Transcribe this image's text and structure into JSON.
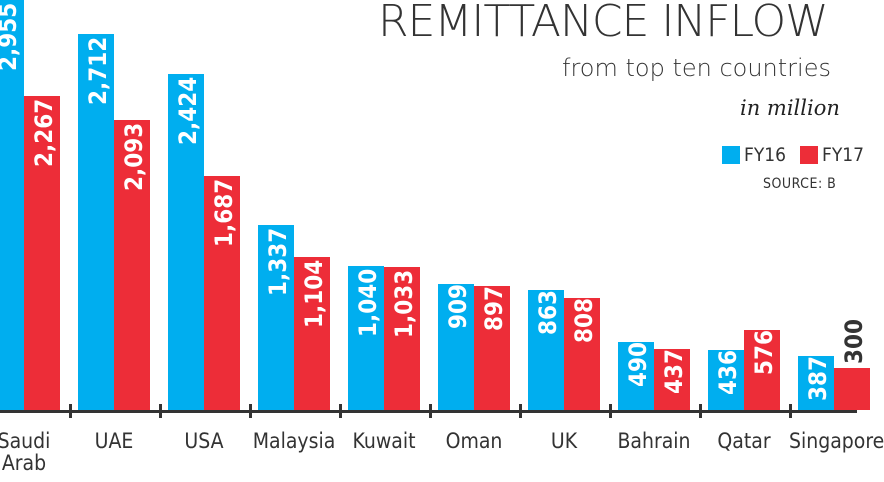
{
  "header": {
    "title": "REMITTANCE INFLOW",
    "subtitle": "from top ten countries",
    "unit": "in million",
    "source": "SOURCE: B"
  },
  "legend": [
    {
      "label": "FY16",
      "color": "#00aeef"
    },
    {
      "label": "FY17",
      "color": "#ed2d38"
    }
  ],
  "chart_data": {
    "type": "bar",
    "title": "REMITTANCE INFLOW from top ten countries",
    "subtitle": "in million",
    "xlabel": "",
    "ylabel": "",
    "categories": [
      "Saudi Arab",
      "UAE",
      "USA",
      "Malaysia",
      "Kuwait",
      "Oman",
      "UK",
      "Bahrain",
      "Qatar",
      "Singapore"
    ],
    "series": [
      {
        "name": "FY16",
        "color": "#00aeef",
        "values": [
          2955,
          2712,
          2424,
          1337,
          1040,
          909,
          863,
          490,
          436,
          387
        ]
      },
      {
        "name": "FY17",
        "color": "#ed2d38",
        "values": [
          2267,
          2093,
          1687,
          1104,
          1033,
          897,
          808,
          437,
          576,
          300
        ]
      }
    ],
    "labels": {
      "FY16": [
        "2,955",
        "2,712",
        "2,424",
        "1,337",
        "1,040",
        "909",
        "863",
        "490",
        "436",
        "387"
      ],
      "FY17": [
        "2,267",
        "2,093",
        "1,687",
        "1,104",
        "1,033",
        "897",
        "808",
        "437",
        "576",
        "300"
      ]
    },
    "grid": false,
    "legend_position": "top-right",
    "source": "SOURCE: B"
  },
  "axis": {
    "categories": [
      "Saudi\nArab",
      "UAE",
      "USA",
      "Malaysia",
      "Kuwait",
      "Oman",
      "UK",
      "Bahrain",
      "Qatar",
      "Singapore"
    ]
  }
}
